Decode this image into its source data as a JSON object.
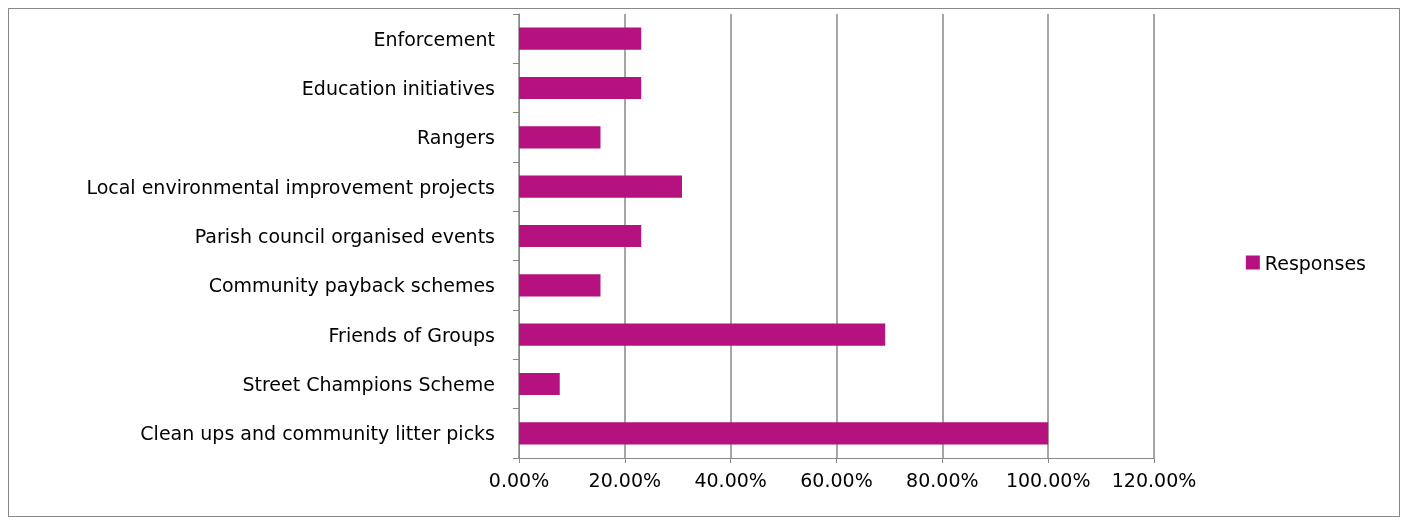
{
  "chart_data": {
    "type": "bar",
    "orientation": "horizontal",
    "categories": [
      "Enforcement",
      "Education initiatives",
      "Rangers",
      "Local environmental improvement projects",
      "Parish council organised events",
      "Community payback schemes",
      "Friends of Groups",
      "Street Champions Scheme",
      "Clean ups and community litter picks"
    ],
    "series": [
      {
        "name": "Responses",
        "color": "#b5117f",
        "values": [
          23.1,
          23.1,
          15.4,
          30.8,
          23.1,
          15.4,
          69.2,
          7.7,
          100
        ]
      }
    ],
    "xlim": [
      0,
      120
    ],
    "xticks": [
      {
        "value": 0,
        "label": "0.00%"
      },
      {
        "value": 20,
        "label": "20.00%"
      },
      {
        "value": 40,
        "label": "40.00%"
      },
      {
        "value": 60,
        "label": "60.00%"
      },
      {
        "value": 80,
        "label": "80.00%"
      },
      {
        "value": 100,
        "label": "100.00%"
      },
      {
        "value": 120,
        "label": "120.00%"
      }
    ],
    "grid": "x",
    "legend": "right"
  }
}
